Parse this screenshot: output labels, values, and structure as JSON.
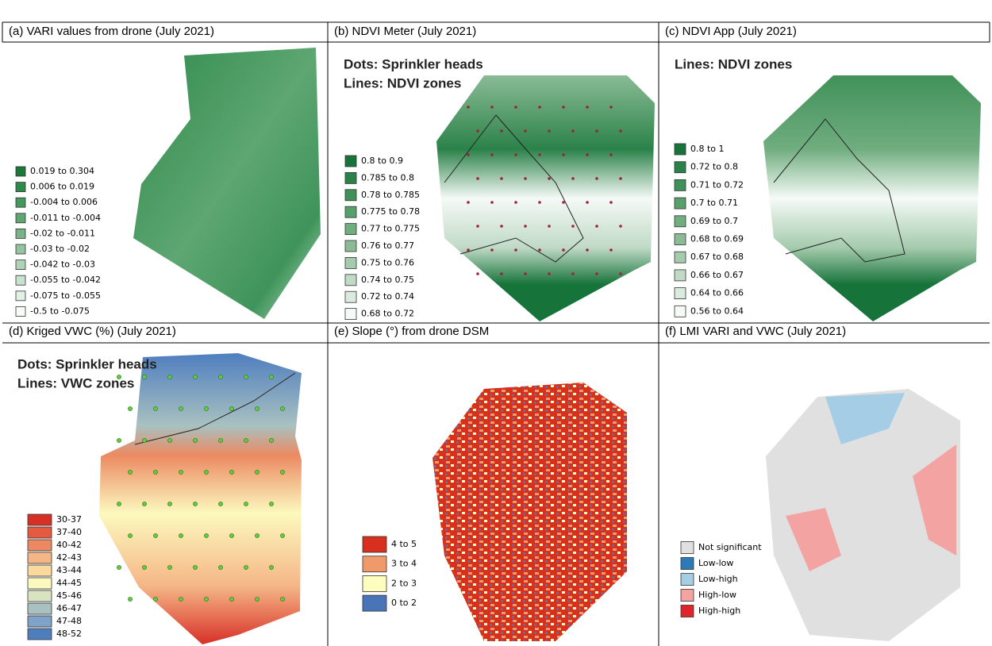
{
  "panels": [
    {
      "title": "(a) VARI values from drone (July 2021)",
      "notes": [],
      "legend": [
        {
          "label": "0.019 to 0.304",
          "color": "#1b7837"
        },
        {
          "label": "0.006 to 0.019",
          "color": "#2e8a4b"
        },
        {
          "label": "-0.004 to 0.006",
          "color": "#46995e"
        },
        {
          "label": "-0.011 to -0.004",
          "color": "#5ea672"
        },
        {
          "label": "-0.02 to -0.011",
          "color": "#78b488"
        },
        {
          "label": "-0.03 to -0.02",
          "color": "#93c39f"
        },
        {
          "label": "-0.042 to -0.03",
          "color": "#afd3b7"
        },
        {
          "label": "-0.055 to -0.042",
          "color": "#c9e2cf"
        },
        {
          "label": "-0.075 to -0.055",
          "color": "#e2f0e6"
        },
        {
          "label": "-0.5 to -0.075",
          "color": "#f8fcf9"
        }
      ]
    },
    {
      "title": "(b) NDVI Meter (July 2021)",
      "notes": [
        "Dots: Sprinkler heads",
        "Lines: NDVI zones"
      ],
      "legend": [
        {
          "label": "0.8 to 0.9",
          "color": "#16733a"
        },
        {
          "label": "0.785 to 0.8",
          "color": "#2b8249"
        },
        {
          "label": "0.78 to 0.785",
          "color": "#409159"
        },
        {
          "label": "0.775 to 0.78",
          "color": "#579f6b"
        },
        {
          "label": "0.77 to 0.775",
          "color": "#70ad7f"
        },
        {
          "label": "0.76 to 0.77",
          "color": "#8abb95"
        },
        {
          "label": "0.75 to 0.76",
          "color": "#a5cbad"
        },
        {
          "label": "0.74 to 0.75",
          "color": "#c0dac6"
        },
        {
          "label": "0.72 to 0.74",
          "color": "#dbeadf"
        },
        {
          "label": "0.68 to 0.72",
          "color": "#f5faf6"
        }
      ]
    },
    {
      "title": "(c) NDVI App (July 2021)",
      "notes": [
        "Lines: NDVI zones"
      ],
      "legend": [
        {
          "label": "0.8 to 1",
          "color": "#16733a"
        },
        {
          "label": "0.72 to 0.8",
          "color": "#2b8249"
        },
        {
          "label": "0.71 to 0.72",
          "color": "#409159"
        },
        {
          "label": "0.7 to 0.71",
          "color": "#579f6b"
        },
        {
          "label": "0.69 to 0.7",
          "color": "#70ad7f"
        },
        {
          "label": "0.68 to 0.69",
          "color": "#8abb95"
        },
        {
          "label": "0.67 to 0.68",
          "color": "#a5cbad"
        },
        {
          "label": "0.66 to 0.67",
          "color": "#c0dac6"
        },
        {
          "label": "0.64 to 0.66",
          "color": "#dbeadf"
        },
        {
          "label": "0.56 to 0.64",
          "color": "#f5faf6"
        }
      ]
    },
    {
      "title": "(d) Kriged VWC (%) (July 2021)",
      "notes": [
        "Dots:  Sprinkler heads",
        "Lines: VWC zones"
      ],
      "legend": [
        {
          "label": "30-37",
          "color": "#d73027"
        },
        {
          "label": "37-40",
          "color": "#e35a3f"
        },
        {
          "label": "40-42",
          "color": "#ec8962"
        },
        {
          "label": "42-43",
          "color": "#f5b686"
        },
        {
          "label": "43-44",
          "color": "#fad99c"
        },
        {
          "label": "44-45",
          "color": "#fcf9be"
        },
        {
          "label": "45-46",
          "color": "#d7e3c1"
        },
        {
          "label": "46-47",
          "color": "#a9c1c0"
        },
        {
          "label": "47-48",
          "color": "#7fa2c9"
        },
        {
          "label": "48-52",
          "color": "#4f7ebf"
        }
      ]
    },
    {
      "title": "(e) Slope (°) from drone DSM",
      "notes": [],
      "legend": [
        {
          "label": "4 to 5",
          "color": "#d7301f"
        },
        {
          "label": "3 to 4",
          "color": "#f09a6b"
        },
        {
          "label": "2 to 3",
          "color": "#fdfdbd"
        },
        {
          "label": "0 to 2",
          "color": "#4a74b8"
        }
      ]
    },
    {
      "title": "(f) LMI VARI and VWC (July 2021)",
      "notes": [],
      "legend": [
        {
          "label": "Not significant",
          "color": "#e0e0e0"
        },
        {
          "label": "Low-low",
          "color": "#2c7bb6"
        },
        {
          "label": "Low-high",
          "color": "#a6cde6"
        },
        {
          "label": "High-low",
          "color": "#f4a3a3"
        },
        {
          "label": "High-high",
          "color": "#e0242b"
        }
      ]
    }
  ]
}
